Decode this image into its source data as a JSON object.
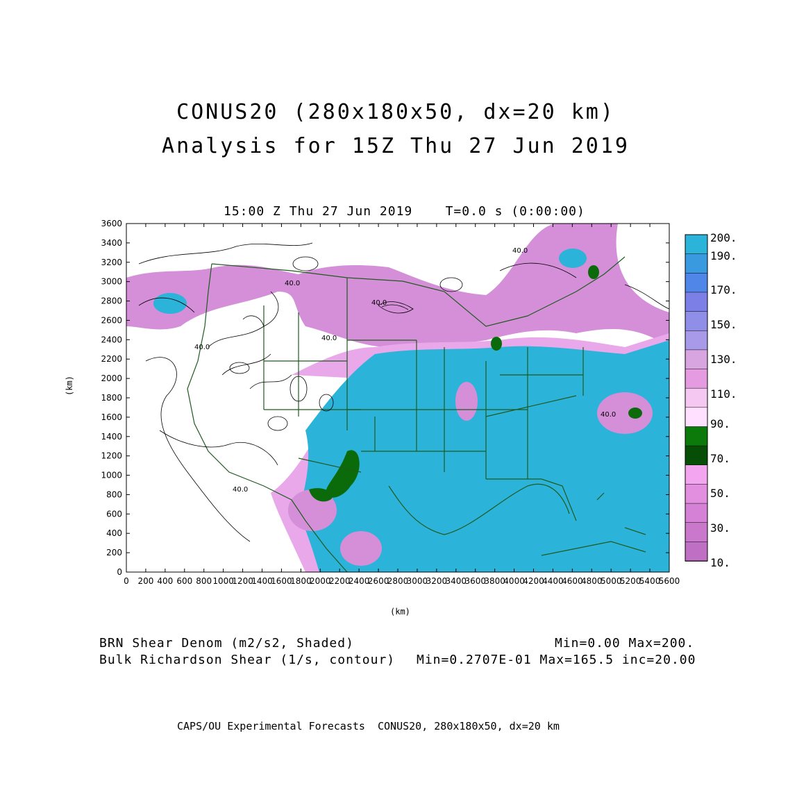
{
  "title": "CONUS20 (280x180x50, dx=20 km)",
  "subtitle": "Analysis for 15Z Thu 27 Jun 2019",
  "valid_time": "15:00 Z Thu 27 Jun 2019    T=0.0 s (0:00:00)",
  "x_axis": {
    "unit_label": "(km)",
    "ticks": [
      "0",
      "200",
      "400",
      "600",
      "800",
      "1000",
      "1200",
      "1400",
      "1600",
      "1800",
      "2000",
      "2200",
      "2400",
      "2600",
      "2800",
      "3000",
      "3200",
      "3400",
      "3600",
      "3800",
      "4000",
      "4200",
      "4400",
      "4600",
      "4800",
      "5000",
      "5200",
      "5400",
      "5600"
    ],
    "range": [
      0,
      5600
    ]
  },
  "y_axis": {
    "unit_label": "(km)",
    "ticks": [
      "0",
      "200",
      "400",
      "600",
      "800",
      "1000",
      "1200",
      "1400",
      "1600",
      "1800",
      "2000",
      "2200",
      "2400",
      "2600",
      "2800",
      "3000",
      "3200",
      "3400",
      "3600"
    ],
    "range": [
      0,
      3600
    ]
  },
  "colorbar": {
    "labels": [
      "200.",
      "190.",
      "170.",
      "150.",
      "130.",
      "110.",
      "90.",
      "70.",
      "50.",
      "30.",
      "10."
    ],
    "colors": [
      "#2bb3d9",
      "#3a9ae0",
      "#4f86e8",
      "#7b7fe6",
      "#8f8fe8",
      "#a89ae8",
      "#d9a5e0",
      "#e59be0",
      "#f4c8f0",
      "#ffe0ff",
      "#0b7a0b",
      "#064d06",
      "#f3a6ef",
      "#e28fe0",
      "#d582d6",
      "#c978cb",
      "#bf6fc4"
    ]
  },
  "map_colors": {
    "high": "#2bb3d9",
    "low": "#d48fd8",
    "mid": "#e8a8ea",
    "green": "#0b6b0b",
    "border": "#1f5a1f"
  },
  "contour_labels": [
    "40.0",
    "40.0",
    "40.0",
    "40.0",
    "40.0",
    "40.0",
    "40.0"
  ],
  "legend": {
    "line1_left": "BRN Shear Denom (m2/s2, Shaded)",
    "line1_right": "Min=0.00 Max=200.",
    "line2_left": "Bulk Richardson Shear (1/s, contour)",
    "line2_right": "Min=0.2707E-01 Max=165.5 inc=20.00"
  },
  "footer": "CAPS/OU Experimental Forecasts  CONUS20, 280x180x50, dx=20 km"
}
